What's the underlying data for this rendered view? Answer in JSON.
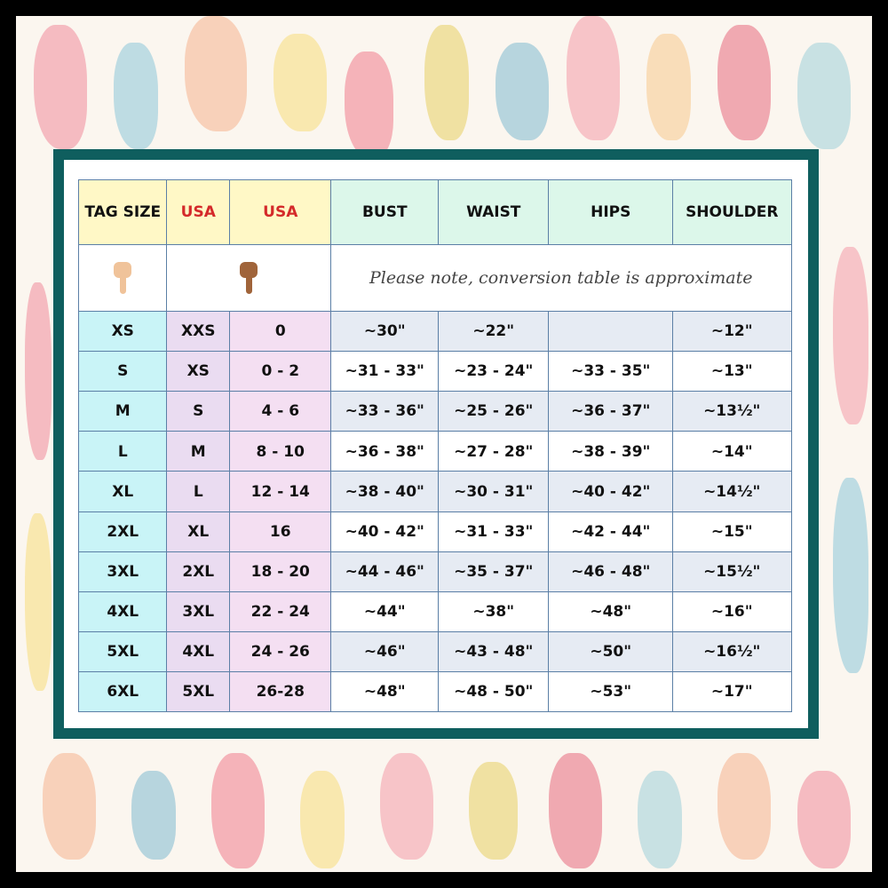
{
  "table": {
    "header": [
      "TAG SIZE",
      "USA",
      "USA",
      "BUST",
      "WAIST",
      "HIPS",
      "SHOULDER"
    ],
    "note": "Please note, conversion table is approximate",
    "rows": [
      [
        "XS",
        "XXS",
        "0",
        "~30\"",
        "~22\"",
        null,
        "~12\""
      ],
      [
        "S",
        "XS",
        "0 - 2",
        "~31 - 33\"",
        "~23 - 24\"",
        "~33 - 35\"",
        "~13\""
      ],
      [
        "M",
        "S",
        "4 - 6",
        "~33 - 36\"",
        "~25 - 26\"",
        "~36 - 37\"",
        "~13½\""
      ],
      [
        "L",
        "M",
        "8 - 10",
        "~36 - 38\"",
        "~27 - 28\"",
        "~38 - 39\"",
        "~14\""
      ],
      [
        "XL",
        "L",
        "12 - 14",
        "~38 - 40\"",
        "~30 - 31\"",
        "~40 - 42\"",
        "~14½\""
      ],
      [
        "2XL",
        "XL",
        "16",
        "~40 - 42\"",
        "~31 - 33\"",
        "~42 - 44\"",
        "~15\""
      ],
      [
        "3XL",
        "2XL",
        "18 - 20",
        "~44 - 46\"",
        "~35 - 37\"",
        "~46 - 48\"",
        "~15½\""
      ],
      [
        "4XL",
        "3XL",
        "22 - 24",
        "~44\"",
        "~38\"",
        "~48\"",
        "~16\""
      ],
      [
        "5XL",
        "4XL",
        "24 - 26",
        "~46\"",
        "~43 - 48\"",
        "~50\"",
        "~16½\""
      ],
      [
        "6XL",
        "5XL",
        "26-28",
        "~48\"",
        "~48 - 50\"",
        "~53\"",
        "~17\""
      ]
    ]
  }
}
